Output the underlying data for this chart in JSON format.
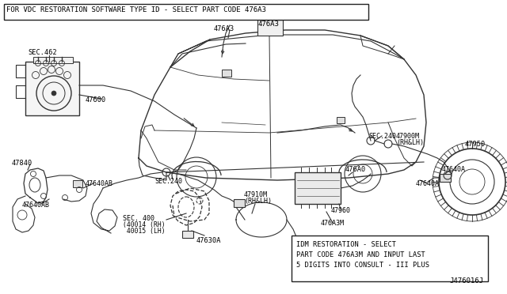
{
  "bg_color": "#ffffff",
  "border_color": "#222222",
  "line_color": "#333333",
  "text_color": "#000000",
  "title_text": "FOR VDC RESTORATION SOFTWARE TYPE ID - SELECT PART CODE 476A3",
  "note_text_line1": "IDM RESTORATION - SELECT",
  "note_text_line2": "PART CODE 476A3M AND INPUT LAST",
  "note_text_line3": "5 DIGITS INTO CONSULT - III PLUS",
  "diagram_id": "J476016J",
  "figsize": [
    6.4,
    3.72
  ],
  "dpi": 100
}
